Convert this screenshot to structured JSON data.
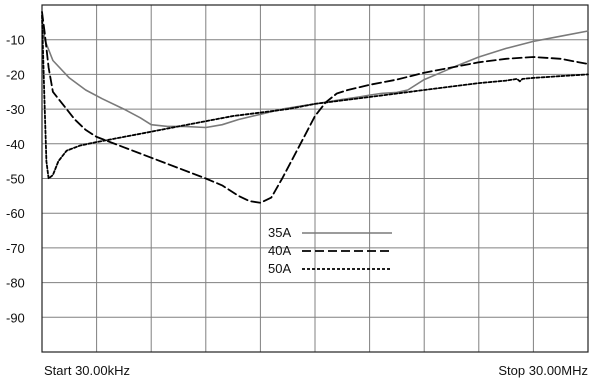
{
  "chart_data": {
    "type": "line",
    "title": "",
    "xlabel": "",
    "ylabel": "",
    "x_range": [
      0,
      1
    ],
    "ylim": [
      -100,
      0
    ],
    "y_ticks": [
      -10,
      -20,
      -30,
      -40,
      -50,
      -60,
      -70,
      -80,
      -90
    ],
    "x_start_label": "Start 30.00kHz",
    "x_stop_label": "Stop 30.00MHz",
    "grid": true,
    "x_grid_divisions": 10,
    "legend_position": "center",
    "series": [
      {
        "name": "35A",
        "color": "#7a7a7a",
        "dash": "solid",
        "points": [
          [
            0.0,
            -4
          ],
          [
            0.005,
            -10
          ],
          [
            0.02,
            -16
          ],
          [
            0.05,
            -21
          ],
          [
            0.08,
            -24.5
          ],
          [
            0.11,
            -27
          ],
          [
            0.15,
            -30
          ],
          [
            0.18,
            -32.5
          ],
          [
            0.2,
            -34.5
          ],
          [
            0.23,
            -35
          ],
          [
            0.26,
            -35
          ],
          [
            0.3,
            -35.3
          ],
          [
            0.33,
            -34.5
          ],
          [
            0.36,
            -33
          ],
          [
            0.4,
            -31.5
          ],
          [
            0.44,
            -30
          ],
          [
            0.48,
            -29
          ],
          [
            0.52,
            -28
          ],
          [
            0.55,
            -27.2
          ],
          [
            0.58,
            -26.5
          ],
          [
            0.6,
            -26
          ],
          [
            0.62,
            -25.5
          ],
          [
            0.65,
            -25.2
          ],
          [
            0.67,
            -24.5
          ],
          [
            0.7,
            -21.5
          ],
          [
            0.73,
            -19.5
          ],
          [
            0.76,
            -17.5
          ],
          [
            0.8,
            -15
          ],
          [
            0.85,
            -12.5
          ],
          [
            0.9,
            -10.5
          ],
          [
            0.95,
            -9
          ],
          [
            1.0,
            -7.5
          ]
        ]
      },
      {
        "name": "40A",
        "color": "#000000",
        "dash": "long-dash",
        "points": [
          [
            0.0,
            -2
          ],
          [
            0.005,
            -8
          ],
          [
            0.012,
            -18
          ],
          [
            0.02,
            -25
          ],
          [
            0.04,
            -29
          ],
          [
            0.06,
            -33
          ],
          [
            0.08,
            -36
          ],
          [
            0.1,
            -38
          ],
          [
            0.15,
            -41
          ],
          [
            0.2,
            -44
          ],
          [
            0.25,
            -47
          ],
          [
            0.3,
            -50
          ],
          [
            0.33,
            -52
          ],
          [
            0.36,
            -55
          ],
          [
            0.38,
            -56.5
          ],
          [
            0.4,
            -57
          ],
          [
            0.42,
            -55.5
          ],
          [
            0.44,
            -50
          ],
          [
            0.46,
            -44
          ],
          [
            0.48,
            -38
          ],
          [
            0.5,
            -32
          ],
          [
            0.52,
            -28
          ],
          [
            0.54,
            -25.5
          ],
          [
            0.56,
            -24.5
          ],
          [
            0.6,
            -23
          ],
          [
            0.65,
            -21.5
          ],
          [
            0.7,
            -19.5
          ],
          [
            0.75,
            -18
          ],
          [
            0.8,
            -16.5
          ],
          [
            0.85,
            -15.5
          ],
          [
            0.9,
            -15
          ],
          [
            0.95,
            -15.5
          ],
          [
            1.0,
            -17
          ]
        ]
      },
      {
        "name": "50A",
        "color": "#000000",
        "dash": "short-dash",
        "points": [
          [
            0.0,
            -3
          ],
          [
            0.004,
            -25
          ],
          [
            0.008,
            -45
          ],
          [
            0.012,
            -50
          ],
          [
            0.02,
            -49
          ],
          [
            0.03,
            -45
          ],
          [
            0.045,
            -42
          ],
          [
            0.07,
            -40.5
          ],
          [
            0.1,
            -39.5
          ],
          [
            0.15,
            -38
          ],
          [
            0.2,
            -36.5
          ],
          [
            0.25,
            -35
          ],
          [
            0.3,
            -33.5
          ],
          [
            0.35,
            -32
          ],
          [
            0.4,
            -31
          ],
          [
            0.45,
            -30
          ],
          [
            0.5,
            -28.5
          ],
          [
            0.55,
            -27.5
          ],
          [
            0.6,
            -26.5
          ],
          [
            0.65,
            -25.5
          ],
          [
            0.7,
            -24.5
          ],
          [
            0.75,
            -23.5
          ],
          [
            0.8,
            -22.5
          ],
          [
            0.85,
            -21.8
          ],
          [
            0.87,
            -21.3
          ],
          [
            0.875,
            -22
          ],
          [
            0.88,
            -21.3
          ],
          [
            0.9,
            -21
          ],
          [
            0.95,
            -20.5
          ],
          [
            1.0,
            -20
          ]
        ]
      }
    ]
  }
}
